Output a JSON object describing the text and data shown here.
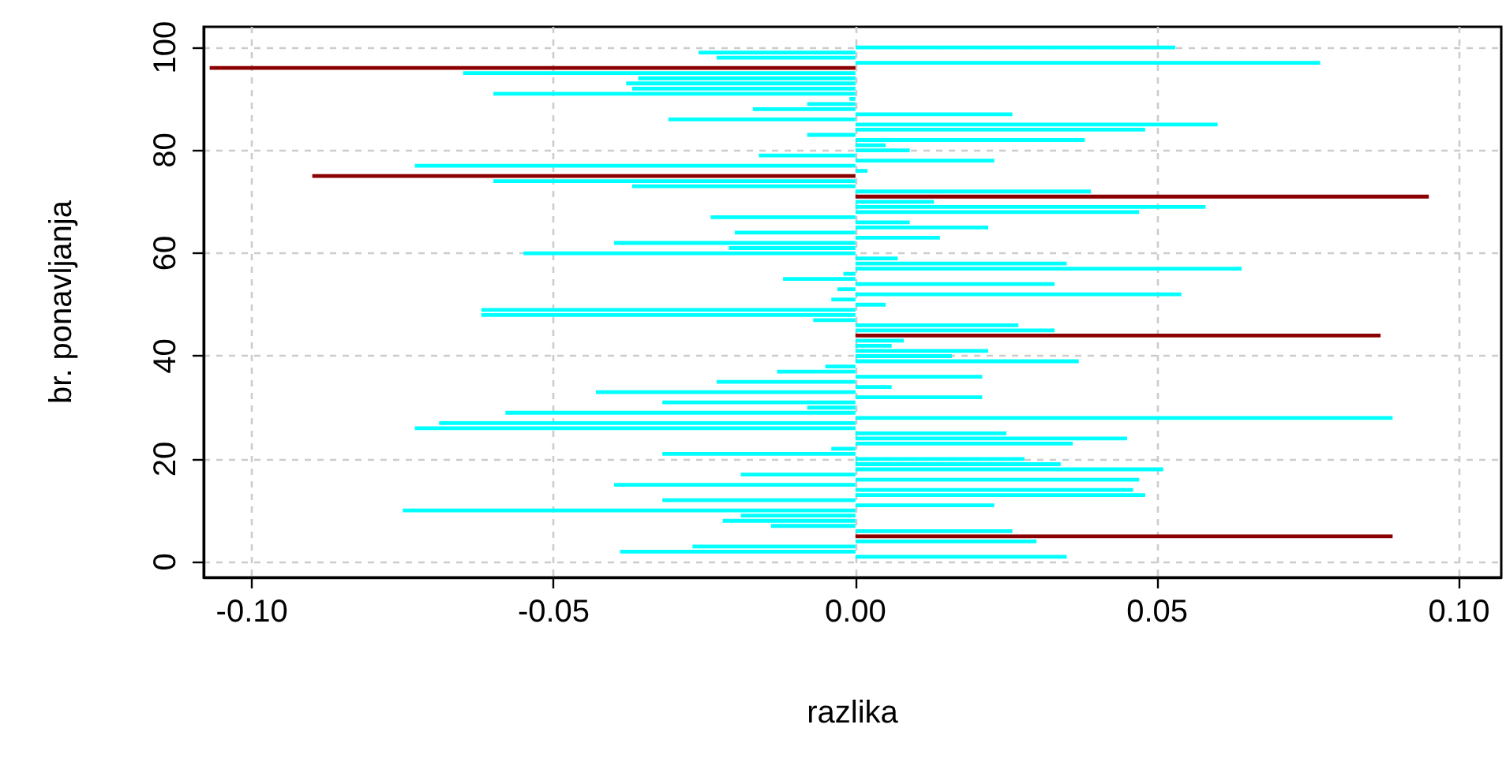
{
  "chart_data": {
    "type": "bar",
    "orientation": "horizontal",
    "xlabel": "razlika",
    "ylabel": "br. ponavljanja",
    "x": [
      1,
      2,
      3,
      4,
      5,
      6,
      7,
      8,
      9,
      10,
      11,
      12,
      13,
      14,
      15,
      16,
      17,
      18,
      19,
      20,
      21,
      22,
      23,
      24,
      25,
      26,
      27,
      28,
      29,
      30,
      31,
      32,
      33,
      34,
      35,
      36,
      37,
      38,
      39,
      40,
      41,
      42,
      43,
      44,
      45,
      46,
      47,
      48,
      49,
      50,
      51,
      52,
      53,
      54,
      55,
      56,
      57,
      58,
      59,
      60,
      61,
      62,
      63,
      64,
      65,
      66,
      67,
      68,
      69,
      70,
      71,
      72,
      73,
      74,
      75,
      76,
      77,
      78,
      79,
      80,
      81,
      82,
      83,
      84,
      85,
      86,
      87,
      88,
      89,
      90,
      91,
      92,
      93,
      94,
      95,
      96,
      97,
      98,
      99,
      100
    ],
    "values": [
      0.035,
      -0.039,
      -0.027,
      0.03,
      0.089,
      0.026,
      -0.014,
      -0.022,
      -0.019,
      -0.075,
      0.023,
      -0.032,
      0.048,
      0.046,
      -0.04,
      0.047,
      -0.019,
      0.051,
      0.034,
      0.028,
      -0.032,
      -0.004,
      0.036,
      0.045,
      0.025,
      -0.073,
      -0.069,
      0.089,
      -0.058,
      -0.008,
      -0.032,
      0.021,
      -0.043,
      0.006,
      -0.023,
      0.021,
      -0.013,
      -0.005,
      0.037,
      0.016,
      0.022,
      0.006,
      0.008,
      0.087,
      0.033,
      0.027,
      -0.007,
      -0.062,
      -0.062,
      0.005,
      -0.004,
      0.054,
      -0.003,
      0.033,
      -0.012,
      -0.002,
      0.064,
      0.035,
      0.007,
      -0.055,
      -0.021,
      -0.04,
      0.014,
      -0.02,
      0.022,
      0.009,
      -0.024,
      0.047,
      0.058,
      0.013,
      0.095,
      0.039,
      -0.037,
      -0.06,
      -0.09,
      0.002,
      -0.073,
      0.023,
      -0.016,
      0.009,
      0.005,
      0.038,
      -0.008,
      0.048,
      0.06,
      -0.031,
      0.026,
      -0.017,
      -0.008,
      -0.001,
      -0.06,
      -0.037,
      -0.038,
      -0.036,
      -0.065,
      -0.107,
      0.077,
      -0.023,
      -0.026,
      0.053
    ],
    "colors": [
      "#00ffff",
      "#00ffff",
      "#00ffff",
      "#00ffff",
      "#8b0000",
      "#00ffff",
      "#00ffff",
      "#00ffff",
      "#00ffff",
      "#00ffff",
      "#00ffff",
      "#00ffff",
      "#00ffff",
      "#00ffff",
      "#00ffff",
      "#00ffff",
      "#00ffff",
      "#00ffff",
      "#00ffff",
      "#00ffff",
      "#00ffff",
      "#00ffff",
      "#00ffff",
      "#00ffff",
      "#00ffff",
      "#00ffff",
      "#00ffff",
      "#00ffff",
      "#00ffff",
      "#00ffff",
      "#00ffff",
      "#00ffff",
      "#00ffff",
      "#00ffff",
      "#00ffff",
      "#00ffff",
      "#00ffff",
      "#00ffff",
      "#00ffff",
      "#00ffff",
      "#00ffff",
      "#00ffff",
      "#00ffff",
      "#8b0000",
      "#00ffff",
      "#00ffff",
      "#00ffff",
      "#00ffff",
      "#00ffff",
      "#00ffff",
      "#00ffff",
      "#00ffff",
      "#00ffff",
      "#00ffff",
      "#00ffff",
      "#00ffff",
      "#00ffff",
      "#00ffff",
      "#00ffff",
      "#00ffff",
      "#00ffff",
      "#00ffff",
      "#00ffff",
      "#00ffff",
      "#00ffff",
      "#00ffff",
      "#00ffff",
      "#00ffff",
      "#00ffff",
      "#00ffff",
      "#8b0000",
      "#00ffff",
      "#00ffff",
      "#00ffff",
      "#8b0000",
      "#00ffff",
      "#00ffff",
      "#00ffff",
      "#00ffff",
      "#00ffff",
      "#00ffff",
      "#00ffff",
      "#00ffff",
      "#00ffff",
      "#00ffff",
      "#00ffff",
      "#00ffff",
      "#00ffff",
      "#00ffff",
      "#00ffff",
      "#00ffff",
      "#00ffff",
      "#00ffff",
      "#00ffff",
      "#00ffff",
      "#8b0000",
      "#00ffff",
      "#00ffff",
      "#00ffff",
      "#00ffff"
    ],
    "xlim": [
      -0.108,
      0.107
    ],
    "xticks": [
      {
        "value": -0.1,
        "label": "-0.10"
      },
      {
        "value": -0.05,
        "label": "-0.05"
      },
      {
        "value": 0,
        "label": "0.00"
      },
      {
        "value": 0.05,
        "label": "0.05"
      },
      {
        "value": 0.1,
        "label": "0.10"
      }
    ],
    "ylim": [
      -3,
      104
    ],
    "yticks": [
      0,
      20,
      40,
      60,
      80,
      100
    ],
    "grid": true
  }
}
